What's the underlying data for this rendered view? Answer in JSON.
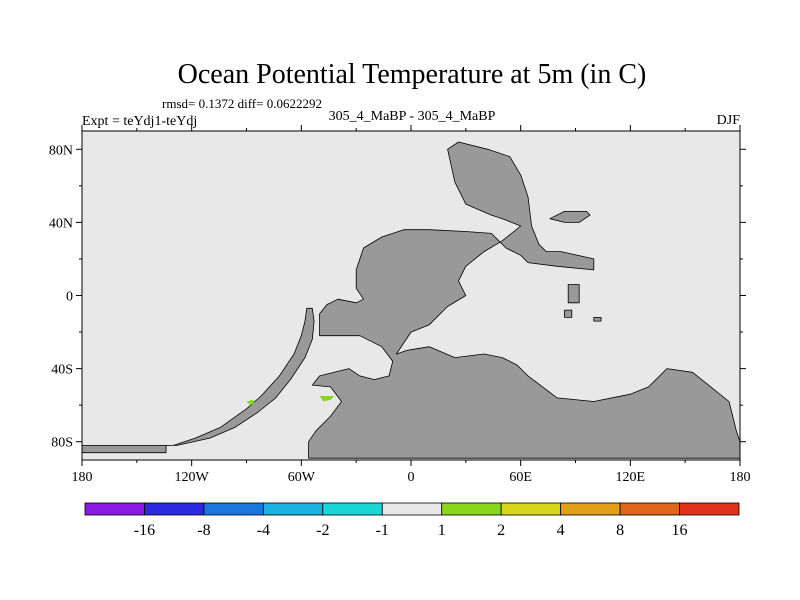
{
  "chart_data": {
    "type": "heatmap",
    "title": "Ocean Potential Temperature at 5m (in C)",
    "stats_text": "rmsd= 0.1372 diff= 0.0622292",
    "left_label": "Expt = teYdj1-teYdj",
    "center_label": "305_4_MaBP - 305_4_MaBP",
    "right_label": "DJF",
    "xlim": [
      -180,
      180
    ],
    "ylim": [
      -90,
      90
    ],
    "x_ticks": [
      {
        "value": -180,
        "label": "180"
      },
      {
        "value": -120,
        "label": "120W"
      },
      {
        "value": -60,
        "label": "60W"
      },
      {
        "value": 0,
        "label": "0"
      },
      {
        "value": 60,
        "label": "60E"
      },
      {
        "value": 120,
        "label": "120E"
      },
      {
        "value": 180,
        "label": "180"
      }
    ],
    "y_ticks": [
      {
        "value": 80,
        "label": "80N"
      },
      {
        "value": 40,
        "label": "40N"
      },
      {
        "value": 0,
        "label": "0"
      },
      {
        "value": -40,
        "label": "40S"
      },
      {
        "value": -80,
        "label": "80S"
      }
    ],
    "ocean_color": "#e8e8e8",
    "land_color": "#999999",
    "colorbar": {
      "boundaries": [
        "-16",
        "-8",
        "-4",
        "-2",
        "-1",
        "1",
        "2",
        "4",
        "8",
        "16"
      ],
      "colors": [
        "#8a1ae0",
        "#2c2ae0",
        "#1a76e0",
        "#1ab0e0",
        "#1ad6d6",
        "#e8e8e8",
        "#8ad61a",
        "#d6d61a",
        "#e0a01a",
        "#e0661a",
        "#e0321a"
      ]
    },
    "anomalies": [
      {
        "name": "anomaly-patch-west",
        "value_range": "1 to 2",
        "color": "#8ad61a",
        "points": [
          [
            -90,
            -58
          ],
          [
            -86,
            -57
          ],
          [
            -86,
            -59
          ],
          [
            -88,
            -60
          ]
        ]
      },
      {
        "name": "anomaly-patch-east",
        "value_range": "1 to 2",
        "color": "#8ad61a",
        "points": [
          [
            -50,
            -55
          ],
          [
            -42,
            -55
          ],
          [
            -44,
            -57
          ],
          [
            -48,
            -58
          ]
        ]
      }
    ],
    "continents": [
      {
        "name": "pangea-west-land",
        "points": [
          [
            -180,
            -82
          ],
          [
            -180,
            -86
          ],
          [
            -134,
            -86
          ],
          [
            -134,
            -82
          ],
          [
            -130,
            -82
          ],
          [
            -118,
            -78
          ],
          [
            -104,
            -72
          ],
          [
            -90,
            -62
          ],
          [
            -82,
            -55
          ],
          [
            -72,
            -44
          ],
          [
            -64,
            -32
          ],
          [
            -60,
            -22
          ],
          [
            -58,
            -14
          ],
          [
            -57,
            -7
          ],
          [
            -54,
            -7
          ],
          [
            -53,
            -14
          ],
          [
            -54,
            -24
          ],
          [
            -58,
            -34
          ],
          [
            -66,
            -46
          ],
          [
            -74,
            -56
          ],
          [
            -84,
            -64
          ],
          [
            -96,
            -72
          ],
          [
            -110,
            -78
          ],
          [
            -128,
            -82
          ]
        ]
      },
      {
        "name": "pangea-main-land",
        "points": [
          [
            -56,
            -89
          ],
          [
            -56,
            -80
          ],
          [
            -52,
            -74
          ],
          [
            -44,
            -66
          ],
          [
            -38,
            -58
          ],
          [
            -44,
            -50
          ],
          [
            -54,
            -49
          ],
          [
            -50,
            -44
          ],
          [
            -34,
            -40
          ],
          [
            -28,
            -44
          ],
          [
            -20,
            -46
          ],
          [
            -12,
            -44
          ],
          [
            -10,
            -36
          ],
          [
            -16,
            -28
          ],
          [
            -28,
            -22
          ],
          [
            -50,
            -22
          ],
          [
            -50,
            -10
          ],
          [
            -46,
            -5
          ],
          [
            -40,
            -2
          ],
          [
            -30,
            -4
          ],
          [
            -26,
            -2
          ],
          [
            -30,
            4
          ],
          [
            -30,
            14
          ],
          [
            -26,
            26
          ],
          [
            -16,
            32
          ],
          [
            -4,
            36
          ],
          [
            10,
            36
          ],
          [
            30,
            35
          ],
          [
            44,
            34
          ],
          [
            48,
            30
          ],
          [
            52,
            26
          ],
          [
            60,
            22
          ],
          [
            64,
            18
          ],
          [
            80,
            16
          ],
          [
            100,
            14
          ],
          [
            100,
            20
          ],
          [
            82,
            24
          ],
          [
            74,
            24
          ],
          [
            70,
            28
          ],
          [
            66,
            38
          ],
          [
            64,
            54
          ],
          [
            60,
            66
          ],
          [
            54,
            76
          ],
          [
            42,
            80
          ],
          [
            26,
            84
          ],
          [
            20,
            80
          ],
          [
            24,
            62
          ],
          [
            30,
            50
          ],
          [
            44,
            44
          ],
          [
            50,
            42
          ],
          [
            60,
            38
          ],
          [
            50,
            30
          ],
          [
            40,
            24
          ],
          [
            30,
            16
          ],
          [
            26,
            8
          ],
          [
            30,
            0
          ],
          [
            20,
            -6
          ],
          [
            10,
            -16
          ],
          [
            0,
            -20
          ],
          [
            -4,
            -26
          ],
          [
            -8,
            -32
          ],
          [
            -2,
            -30
          ],
          [
            10,
            -28
          ],
          [
            24,
            -34
          ],
          [
            40,
            -32
          ],
          [
            50,
            -34
          ],
          [
            58,
            -38
          ],
          [
            64,
            -44
          ],
          [
            72,
            -50
          ],
          [
            80,
            -56
          ],
          [
            100,
            -58
          ],
          [
            120,
            -54
          ],
          [
            130,
            -50
          ],
          [
            140,
            -40
          ],
          [
            154,
            -42
          ],
          [
            164,
            -50
          ],
          [
            174,
            -58
          ],
          [
            176,
            -66
          ],
          [
            178,
            -74
          ],
          [
            180,
            -80
          ],
          [
            180,
            -89
          ]
        ]
      },
      {
        "name": "east-island-large",
        "points": [
          [
            76,
            42
          ],
          [
            84,
            46
          ],
          [
            96,
            46
          ],
          [
            98,
            44
          ],
          [
            92,
            40
          ],
          [
            84,
            40
          ]
        ]
      },
      {
        "name": "east-island-small-1",
        "points": [
          [
            86,
            6
          ],
          [
            92,
            6
          ],
          [
            92,
            -4
          ],
          [
            86,
            -4
          ]
        ]
      },
      {
        "name": "east-island-small-2",
        "points": [
          [
            84,
            -8
          ],
          [
            88,
            -8
          ],
          [
            88,
            -12
          ],
          [
            84,
            -12
          ]
        ]
      },
      {
        "name": "east-island-small-3",
        "points": [
          [
            100,
            -12
          ],
          [
            104,
            -12
          ],
          [
            104,
            -14
          ],
          [
            100,
            -14
          ]
        ]
      }
    ]
  }
}
